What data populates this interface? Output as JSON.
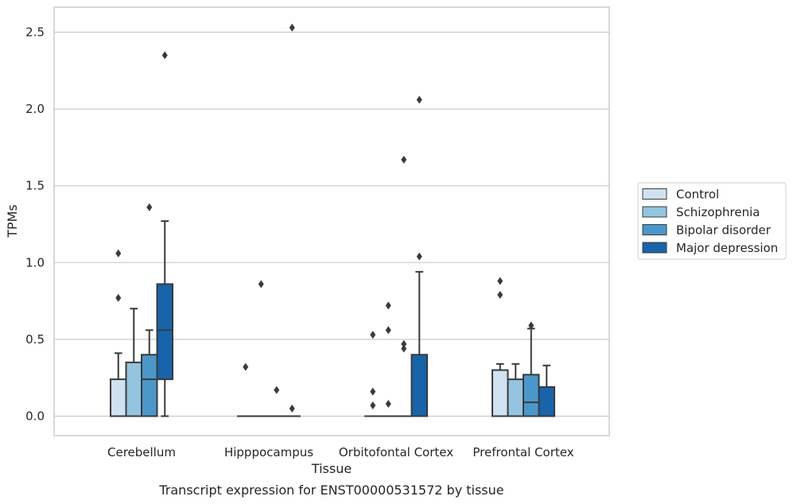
{
  "chart_data": {
    "type": "boxplot",
    "title": "Transcript expression for ENST00000531572 by tissue",
    "xlabel": "Tissue",
    "ylabel": "TPMs",
    "ylim": [
      -0.12,
      2.66
    ],
    "yticks": [
      0.0,
      0.5,
      1.0,
      1.5,
      2.0,
      2.5
    ],
    "ytick_labels": [
      "0.0",
      "0.5",
      "1.0",
      "1.5",
      "2.0",
      "2.5"
    ],
    "grid": true,
    "legend_position": "right",
    "categories": [
      "Cerebellum",
      "Hipppocampus",
      "Orbitofontal Cortex",
      "Prefrontal Cortex"
    ],
    "series": [
      {
        "name": "Control",
        "color": "#d0e1f2",
        "boxes": [
          {
            "min": 0.0,
            "q1": 0.0,
            "median": 0.0,
            "q3": 0.24,
            "max": 0.41,
            "outliers": [
              0.77,
              1.06
            ]
          },
          {
            "min": 0.0,
            "q1": 0.0,
            "median": 0.0,
            "q3": 0.0,
            "max": 0.0,
            "outliers": [
              0.32
            ]
          },
          {
            "min": 0.0,
            "q1": 0.0,
            "median": 0.0,
            "q3": 0.0,
            "max": 0.0,
            "outliers": [
              0.07,
              0.16,
              0.53
            ]
          },
          {
            "min": 0.0,
            "q1": 0.0,
            "median": 0.0,
            "q3": 0.3,
            "max": 0.34,
            "outliers": [
              0.79,
              0.88
            ]
          }
        ]
      },
      {
        "name": "Schizophrenia",
        "color": "#94c4df",
        "boxes": [
          {
            "min": 0.0,
            "q1": 0.0,
            "median": 0.0,
            "q3": 0.35,
            "max": 0.7,
            "outliers": []
          },
          {
            "min": 0.0,
            "q1": 0.0,
            "median": 0.0,
            "q3": 0.0,
            "max": 0.0,
            "outliers": [
              0.86
            ]
          },
          {
            "min": 0.0,
            "q1": 0.0,
            "median": 0.0,
            "q3": 0.0,
            "max": 0.0,
            "outliers": [
              0.08,
              0.56,
              0.72
            ]
          },
          {
            "min": 0.0,
            "q1": 0.0,
            "median": 0.0,
            "q3": 0.24,
            "max": 0.34,
            "outliers": []
          }
        ]
      },
      {
        "name": "Bipolar disorder",
        "color": "#4a98c9",
        "boxes": [
          {
            "min": 0.0,
            "q1": 0.0,
            "median": 0.24,
            "q3": 0.4,
            "max": 0.56,
            "outliers": [
              1.36
            ]
          },
          {
            "min": 0.0,
            "q1": 0.0,
            "median": 0.0,
            "q3": 0.0,
            "max": 0.0,
            "outliers": [
              0.17
            ]
          },
          {
            "min": 0.0,
            "q1": 0.0,
            "median": 0.0,
            "q3": 0.0,
            "max": 0.0,
            "outliers": [
              0.44,
              0.47,
              1.67
            ]
          },
          {
            "min": 0.0,
            "q1": 0.0,
            "median": 0.09,
            "q3": 0.27,
            "max": 0.57,
            "outliers": [
              0.59
            ]
          }
        ]
      },
      {
        "name": "Major depression",
        "color": "#1764ab",
        "boxes": [
          {
            "min": 0.0,
            "q1": 0.24,
            "median": 0.56,
            "q3": 0.86,
            "max": 1.27,
            "outliers": [
              2.35
            ]
          },
          {
            "min": 0.0,
            "q1": 0.0,
            "median": 0.0,
            "q3": 0.0,
            "max": 0.0,
            "outliers": [
              0.05,
              2.53
            ]
          },
          {
            "min": 0.0,
            "q1": 0.0,
            "median": 0.0,
            "q3": 0.4,
            "max": 0.94,
            "outliers": [
              1.04,
              2.06
            ]
          },
          {
            "min": 0.0,
            "q1": 0.0,
            "median": 0.0,
            "q3": 0.19,
            "max": 0.33,
            "outliers": []
          }
        ]
      }
    ]
  }
}
